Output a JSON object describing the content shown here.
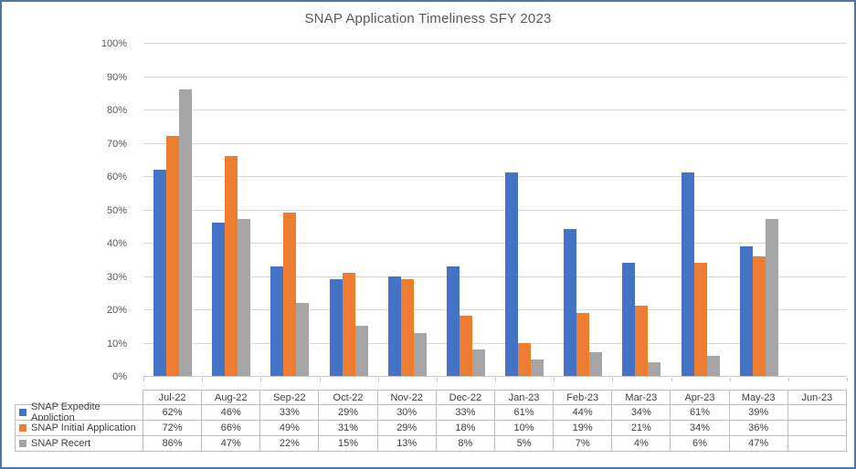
{
  "window": {
    "frame_border_color": "#4A77AD",
    "background": "#FFFFFF"
  },
  "chart_data": {
    "type": "bar",
    "title": "SNAP Application Timeliness SFY 2023",
    "xlabel": "",
    "ylabel": "",
    "ylim": [
      0,
      100
    ],
    "ytick_labels": [
      "0%",
      "10%",
      "20%",
      "30%",
      "40%",
      "50%",
      "60%",
      "70%",
      "80%",
      "90%",
      "100%"
    ],
    "grid": true,
    "legend_position": "table-left",
    "value_suffix": "%",
    "categories": [
      "Jul-22",
      "Aug-22",
      "Sep-22",
      "Oct-22",
      "Nov-22",
      "Dec-22",
      "Jan-23",
      "Feb-23",
      "Mar-23",
      "Apr-23",
      "May-23",
      "Jun-23"
    ],
    "series": [
      {
        "name": "SNAP Expedite Appliction",
        "color": "#4472C4",
        "values": [
          62,
          46,
          33,
          29,
          30,
          33,
          61,
          44,
          34,
          61,
          39,
          null
        ]
      },
      {
        "name": "SNAP Initial Application",
        "color": "#ED7D31",
        "values": [
          72,
          66,
          49,
          31,
          29,
          18,
          10,
          19,
          21,
          34,
          36,
          null
        ]
      },
      {
        "name": "SNAP Recert",
        "color": "#A5A5A5",
        "values": [
          86,
          47,
          22,
          15,
          13,
          8,
          5,
          7,
          4,
          6,
          47,
          null
        ]
      }
    ],
    "colors": {
      "gridline": "#D9D9D9",
      "axis_line": "#C6C6C6",
      "axis_text": "#595959",
      "table_border": "#BFBFBF",
      "table_text": "#3F3F3F"
    }
  }
}
